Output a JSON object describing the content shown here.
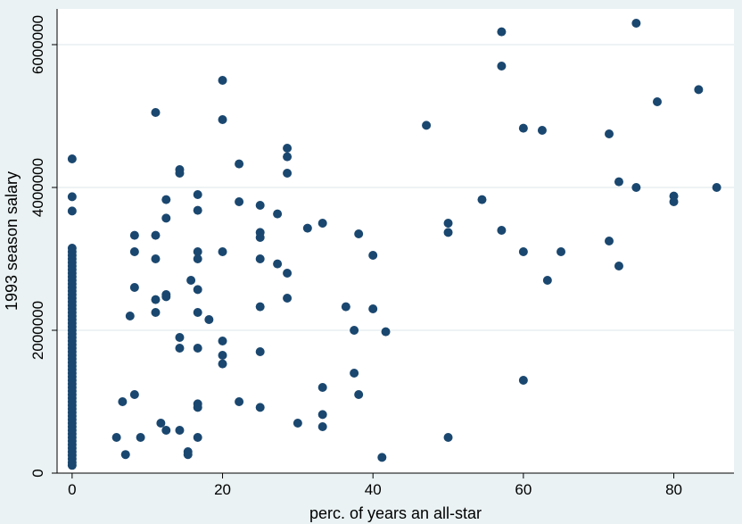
{
  "chart_data": {
    "type": "scatter",
    "title": "",
    "xlabel": "perc. of years an all-star",
    "ylabel": "1993 season salary",
    "xlim": [
      -2,
      88
    ],
    "ylim": [
      0,
      6500000
    ],
    "x_ticks": [
      0,
      20,
      40,
      60,
      80
    ],
    "x_tick_labels": [
      "0",
      "20",
      "40",
      "60",
      "80"
    ],
    "y_ticks": [
      0,
      2000000,
      4000000,
      6000000
    ],
    "y_tick_labels": [
      "0",
      "2000000",
      "4000000",
      "6000000"
    ],
    "grid": "horizontal",
    "legend": "none",
    "colors": {
      "background": "#eaf2f3",
      "plot_background": "#ffffff",
      "grid": "#e8eff1",
      "marker": "#1a476f"
    },
    "points": [
      [
        0,
        4400000
      ],
      [
        0,
        3870000
      ],
      [
        0,
        3670000
      ],
      [
        0,
        3150000
      ],
      [
        0,
        3100000
      ],
      [
        0,
        3050000
      ],
      [
        0,
        3000000
      ],
      [
        0,
        2950000
      ],
      [
        0,
        2900000
      ],
      [
        0,
        2850000
      ],
      [
        0,
        2800000
      ],
      [
        0,
        2750000
      ],
      [
        0,
        2700000
      ],
      [
        0,
        2650000
      ],
      [
        0,
        2600000
      ],
      [
        0,
        2550000
      ],
      [
        0,
        2500000
      ],
      [
        0,
        2450000
      ],
      [
        0,
        2400000
      ],
      [
        0,
        2350000
      ],
      [
        0,
        2300000
      ],
      [
        0,
        2250000
      ],
      [
        0,
        2200000
      ],
      [
        0,
        2150000
      ],
      [
        0,
        2100000
      ],
      [
        0,
        2050000
      ],
      [
        0,
        2000000
      ],
      [
        0,
        1950000
      ],
      [
        0,
        1900000
      ],
      [
        0,
        1850000
      ],
      [
        0,
        1800000
      ],
      [
        0,
        1750000
      ],
      [
        0,
        1700000
      ],
      [
        0,
        1650000
      ],
      [
        0,
        1600000
      ],
      [
        0,
        1550000
      ],
      [
        0,
        1500000
      ],
      [
        0,
        1450000
      ],
      [
        0,
        1400000
      ],
      [
        0,
        1350000
      ],
      [
        0,
        1300000
      ],
      [
        0,
        1250000
      ],
      [
        0,
        1200000
      ],
      [
        0,
        1150000
      ],
      [
        0,
        1100000
      ],
      [
        0,
        1050000
      ],
      [
        0,
        1000000
      ],
      [
        0,
        950000
      ],
      [
        0,
        900000
      ],
      [
        0,
        850000
      ],
      [
        0,
        800000
      ],
      [
        0,
        750000
      ],
      [
        0,
        700000
      ],
      [
        0,
        650000
      ],
      [
        0,
        600000
      ],
      [
        0,
        550000
      ],
      [
        0,
        500000
      ],
      [
        0,
        450000
      ],
      [
        0,
        400000
      ],
      [
        0,
        350000
      ],
      [
        0,
        300000
      ],
      [
        0,
        250000
      ],
      [
        0,
        200000
      ],
      [
        0,
        150000
      ],
      [
        0,
        109000
      ],
      [
        5.9,
        500000
      ],
      [
        6.7,
        1000000
      ],
      [
        7.1,
        260000
      ],
      [
        7.7,
        2200000
      ],
      [
        8.3,
        3330000
      ],
      [
        8.3,
        3100000
      ],
      [
        8.3,
        2600000
      ],
      [
        8.3,
        1100000
      ],
      [
        9.1,
        500000
      ],
      [
        11.1,
        5050000
      ],
      [
        11.1,
        3330000
      ],
      [
        11.1,
        3000000
      ],
      [
        11.1,
        2430000
      ],
      [
        11.1,
        2250000
      ],
      [
        11.8,
        700000
      ],
      [
        12.5,
        3830000
      ],
      [
        12.5,
        3570000
      ],
      [
        12.5,
        2500000
      ],
      [
        12.5,
        2470000
      ],
      [
        12.5,
        600000
      ],
      [
        14.3,
        4250000
      ],
      [
        14.3,
        4200000
      ],
      [
        14.3,
        1900000
      ],
      [
        14.3,
        1750000
      ],
      [
        14.3,
        600000
      ],
      [
        15.4,
        300000
      ],
      [
        15.4,
        260000
      ],
      [
        15.8,
        2700000
      ],
      [
        16.7,
        3900000
      ],
      [
        16.7,
        3680000
      ],
      [
        16.7,
        3100000
      ],
      [
        16.7,
        3000000
      ],
      [
        16.7,
        2570000
      ],
      [
        16.7,
        2250000
      ],
      [
        16.7,
        1750000
      ],
      [
        16.7,
        970000
      ],
      [
        16.7,
        920000
      ],
      [
        16.7,
        500000
      ],
      [
        18.2,
        2150000
      ],
      [
        20,
        5500000
      ],
      [
        20,
        4950000
      ],
      [
        20,
        3100000
      ],
      [
        20,
        1850000
      ],
      [
        20,
        1650000
      ],
      [
        20,
        1530000
      ],
      [
        22.2,
        4330000
      ],
      [
        22.2,
        3800000
      ],
      [
        22.2,
        1000000
      ],
      [
        25,
        3750000
      ],
      [
        25,
        3370000
      ],
      [
        25,
        3300000
      ],
      [
        25,
        3000000
      ],
      [
        25,
        2330000
      ],
      [
        25,
        1700000
      ],
      [
        25,
        920000
      ],
      [
        27.3,
        3630000
      ],
      [
        27.3,
        2930000
      ],
      [
        28.6,
        4550000
      ],
      [
        28.6,
        4430000
      ],
      [
        28.6,
        4200000
      ],
      [
        28.6,
        2800000
      ],
      [
        28.6,
        2450000
      ],
      [
        30,
        700000
      ],
      [
        31.3,
        3430000
      ],
      [
        33.3,
        3500000
      ],
      [
        33.3,
        1200000
      ],
      [
        33.3,
        820000
      ],
      [
        33.3,
        650000
      ],
      [
        36.4,
        2330000
      ],
      [
        37.5,
        2000000
      ],
      [
        37.5,
        1400000
      ],
      [
        38.1,
        3350000
      ],
      [
        38.1,
        1100000
      ],
      [
        40,
        3050000
      ],
      [
        40,
        2300000
      ],
      [
        41.2,
        220000
      ],
      [
        41.7,
        1980000
      ],
      [
        47.1,
        4870000
      ],
      [
        50,
        3500000
      ],
      [
        50,
        3370000
      ],
      [
        50,
        500000
      ],
      [
        54.5,
        3830000
      ],
      [
        57.1,
        6180000
      ],
      [
        57.1,
        5700000
      ],
      [
        57.1,
        3400000
      ],
      [
        60,
        4830000
      ],
      [
        60,
        3100000
      ],
      [
        60,
        1300000
      ],
      [
        62.5,
        4800000
      ],
      [
        63.2,
        2700000
      ],
      [
        65,
        3100000
      ],
      [
        71.4,
        4750000
      ],
      [
        71.4,
        3250000
      ],
      [
        72.7,
        4080000
      ],
      [
        72.7,
        2900000
      ],
      [
        75,
        6300000
      ],
      [
        75,
        4000000
      ],
      [
        77.8,
        5200000
      ],
      [
        80,
        3880000
      ],
      [
        80,
        3800000
      ],
      [
        83.3,
        5370000
      ],
      [
        85.7,
        4000000
      ]
    ]
  }
}
